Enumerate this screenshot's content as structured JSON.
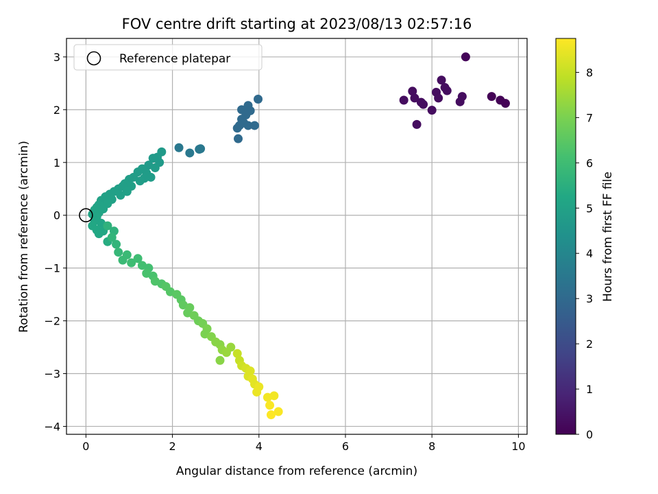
{
  "chart_data": {
    "type": "scatter",
    "title": "FOV centre drift starting at 2023/08/13 02:57:16",
    "xlabel": "Angular distance from reference (arcmin)",
    "ylabel": "Rotation from reference (arcmin)",
    "xlim": [
      -0.45,
      10.2
    ],
    "ylim": [
      -4.15,
      3.35
    ],
    "xticks": [
      0,
      2,
      4,
      6,
      8,
      10
    ],
    "yticks": [
      -4,
      -3,
      -2,
      -1,
      0,
      1,
      2,
      3
    ],
    "grid": true,
    "legend": {
      "placement": "upper-left",
      "entries": [
        "Reference platepar"
      ]
    },
    "reference_point": {
      "name": "Reference platepar",
      "x": 0,
      "y": 0
    },
    "colorbar": {
      "label": "Hours from first FF file",
      "range": [
        0,
        8.75
      ],
      "ticks": [
        0,
        1,
        2,
        3,
        4,
        5,
        6,
        7,
        8
      ],
      "colormap": "viridis"
    },
    "series": [
      {
        "segment": "early",
        "points": [
          [
            8.78,
            3.0,
            0.1
          ],
          [
            9.38,
            2.25,
            0.05
          ],
          [
            9.58,
            2.18,
            0.05
          ],
          [
            9.7,
            2.12,
            0.05
          ],
          [
            8.65,
            2.15,
            0.3
          ],
          [
            8.7,
            2.25,
            0.3
          ],
          [
            8.35,
            2.36,
            0.3
          ],
          [
            8.22,
            2.56,
            0.3
          ],
          [
            8.3,
            2.42,
            0.3
          ],
          [
            8.1,
            2.33,
            0.3
          ],
          [
            8.15,
            2.22,
            0.3
          ],
          [
            8.0,
            1.99,
            0.3
          ],
          [
            7.75,
            2.14,
            0.3
          ],
          [
            7.8,
            2.1,
            0.3
          ],
          [
            7.6,
            2.22,
            0.3
          ],
          [
            7.55,
            2.35,
            0.3
          ],
          [
            7.35,
            2.18,
            0.3
          ],
          [
            7.65,
            1.72,
            0.3
          ]
        ]
      },
      {
        "segment": "middle",
        "points": [
          [
            3.98,
            2.2,
            3.0
          ],
          [
            3.75,
            2.08,
            3.0
          ],
          [
            3.6,
            2.0,
            3.0
          ],
          [
            3.8,
            1.98,
            3.0
          ],
          [
            3.7,
            1.9,
            3.0
          ],
          [
            3.6,
            1.82,
            3.0
          ],
          [
            3.65,
            1.75,
            3.0
          ],
          [
            3.55,
            1.7,
            3.0
          ],
          [
            3.75,
            1.7,
            3.0
          ],
          [
            3.9,
            1.7,
            3.0
          ],
          [
            3.5,
            1.65,
            3.0
          ],
          [
            3.52,
            1.45,
            3.0
          ],
          [
            2.15,
            1.28,
            3.5
          ],
          [
            2.4,
            1.18,
            3.5
          ],
          [
            2.62,
            1.25,
            3.5
          ],
          [
            2.65,
            1.26,
            3.5
          ]
        ]
      },
      {
        "segment": "upper-arm",
        "points": [
          [
            1.75,
            1.2,
            4.7
          ],
          [
            1.65,
            1.1,
            4.7
          ],
          [
            1.55,
            1.08,
            4.7
          ],
          [
            1.7,
            1.0,
            4.7
          ],
          [
            1.45,
            0.95,
            4.7
          ],
          [
            1.6,
            0.9,
            4.8
          ],
          [
            1.3,
            0.88,
            4.8
          ],
          [
            1.2,
            0.82,
            4.8
          ],
          [
            1.4,
            0.8,
            4.8
          ],
          [
            1.5,
            0.72,
            4.8
          ],
          [
            1.35,
            0.7,
            4.8
          ],
          [
            1.1,
            0.72,
            4.85
          ],
          [
            1.0,
            0.68,
            4.85
          ],
          [
            1.25,
            0.65,
            4.85
          ],
          [
            0.9,
            0.6,
            4.9
          ],
          [
            0.85,
            0.55,
            4.9
          ],
          [
            1.05,
            0.55,
            4.9
          ],
          [
            0.75,
            0.5,
            4.9
          ],
          [
            0.95,
            0.45,
            4.95
          ],
          [
            0.65,
            0.45,
            4.95
          ],
          [
            0.55,
            0.4,
            4.95
          ],
          [
            0.8,
            0.38,
            4.95
          ],
          [
            0.45,
            0.35,
            5.0
          ],
          [
            0.6,
            0.3,
            5.0
          ],
          [
            0.35,
            0.28,
            5.0
          ],
          [
            0.5,
            0.22,
            5.05
          ],
          [
            0.3,
            0.2,
            5.05
          ],
          [
            0.25,
            0.15,
            5.05
          ],
          [
            0.4,
            0.12,
            5.05
          ],
          [
            0.2,
            0.1,
            5.1
          ],
          [
            0.3,
            0.05,
            5.1
          ],
          [
            0.15,
            0.02,
            5.1
          ],
          [
            0.25,
            -0.03,
            5.15
          ],
          [
            0.2,
            -0.1,
            5.15
          ],
          [
            0.35,
            -0.15,
            5.15
          ],
          [
            0.15,
            -0.2,
            5.2
          ],
          [
            0.25,
            -0.28,
            5.2
          ],
          [
            0.4,
            -0.3,
            5.2
          ],
          [
            0.5,
            -0.5,
            5.4
          ],
          [
            0.3,
            -0.35,
            5.2
          ]
        ]
      },
      {
        "segment": "lower-arm",
        "points": [
          [
            0.5,
            -0.2,
            5.6
          ],
          [
            0.65,
            -0.3,
            5.6
          ],
          [
            0.6,
            -0.42,
            5.7
          ],
          [
            0.7,
            -0.55,
            5.7
          ],
          [
            0.75,
            -0.7,
            5.8
          ],
          [
            0.85,
            -0.85,
            5.9
          ],
          [
            0.95,
            -0.75,
            5.9
          ],
          [
            1.05,
            -0.9,
            6.0
          ],
          [
            1.2,
            -0.82,
            6.0
          ],
          [
            1.3,
            -0.95,
            6.1
          ],
          [
            1.45,
            -1.0,
            6.1
          ],
          [
            1.4,
            -1.1,
            6.2
          ],
          [
            1.55,
            -1.15,
            6.2
          ],
          [
            1.6,
            -1.25,
            6.3
          ],
          [
            1.75,
            -1.3,
            6.3
          ],
          [
            1.85,
            -1.35,
            6.4
          ],
          [
            1.95,
            -1.45,
            6.4
          ],
          [
            2.1,
            -1.5,
            6.5
          ],
          [
            2.2,
            -1.6,
            6.5
          ],
          [
            2.25,
            -1.7,
            6.6
          ],
          [
            2.4,
            -1.75,
            6.7
          ],
          [
            2.35,
            -1.85,
            6.7
          ],
          [
            2.5,
            -1.9,
            6.8
          ],
          [
            2.6,
            -2.0,
            6.8
          ],
          [
            2.7,
            -2.05,
            6.9
          ],
          [
            2.8,
            -2.15,
            7.0
          ],
          [
            2.75,
            -2.25,
            7.0
          ],
          [
            2.9,
            -2.3,
            7.1
          ],
          [
            3.0,
            -2.4,
            7.2
          ],
          [
            3.1,
            -2.45,
            7.2
          ],
          [
            3.15,
            -2.55,
            7.3
          ],
          [
            3.25,
            -2.6,
            7.4
          ],
          [
            3.35,
            -2.5,
            7.4
          ],
          [
            3.1,
            -2.75,
            7.2
          ],
          [
            3.5,
            -2.62,
            8.0
          ],
          [
            3.55,
            -2.75,
            8.0
          ],
          [
            3.6,
            -2.85,
            8.1
          ],
          [
            3.7,
            -2.9,
            8.2
          ],
          [
            3.8,
            -2.95,
            8.3
          ],
          [
            3.75,
            -3.05,
            8.3
          ],
          [
            3.85,
            -3.1,
            8.4
          ],
          [
            3.9,
            -3.2,
            8.4
          ],
          [
            4.0,
            -3.25,
            8.5
          ],
          [
            3.95,
            -3.35,
            8.5
          ],
          [
            4.2,
            -3.45,
            8.6
          ],
          [
            4.35,
            -3.42,
            8.6
          ],
          [
            4.25,
            -3.6,
            8.7
          ],
          [
            4.45,
            -3.72,
            8.7
          ],
          [
            4.28,
            -3.78,
            8.75
          ]
        ]
      }
    ]
  }
}
